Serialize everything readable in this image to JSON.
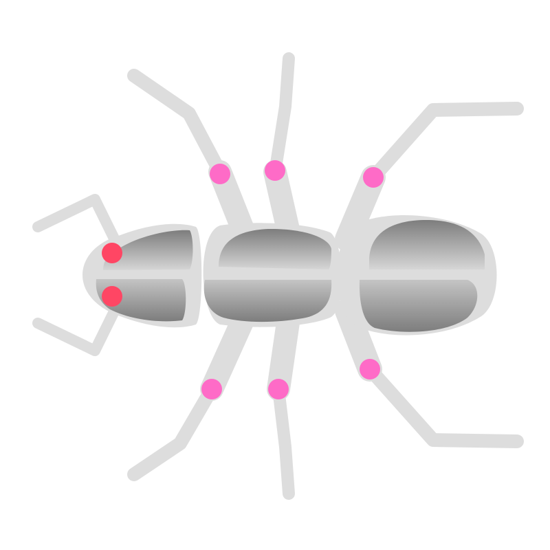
{
  "colors": {
    "background": "#ffffff",
    "body_light": "#dddddd",
    "shade_dark": "#7d7d7d",
    "shade_light": "#d6d6d6",
    "joint": "#fe6bc7",
    "eye": "#ff4664"
  },
  "figure": {
    "subject": "ant-illustration",
    "legs": 6,
    "antennae": 2,
    "eyes": 2,
    "body_segments": [
      "head",
      "thorax",
      "abdomen"
    ]
  }
}
